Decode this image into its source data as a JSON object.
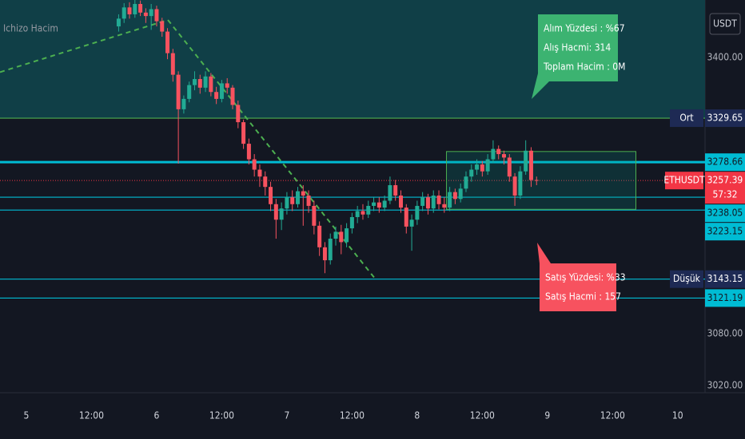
{
  "chart_data": {
    "type": "candlestick",
    "symbol": "ETHUSDT",
    "currency": "USDT",
    "indicator": "Ichizo Hacim",
    "colors": {
      "up": "#22ab94",
      "down": "#f7525f",
      "zone": "#103f47",
      "trend": "#4caf50",
      "box": "#4caf50"
    },
    "xlim": [
      -4.86,
      125.04
    ],
    "xticks": [
      {
        "value": 0,
        "label": "5"
      },
      {
        "value": 12,
        "label": "12:00"
      },
      {
        "value": 24,
        "label": "6"
      },
      {
        "value": 36,
        "label": "12:00"
      },
      {
        "value": 48,
        "label": "7"
      },
      {
        "value": 60,
        "label": "12:00"
      },
      {
        "value": 72,
        "label": "8"
      },
      {
        "value": 84,
        "label": "12:00"
      },
      {
        "value": 96,
        "label": "9"
      },
      {
        "value": 108,
        "label": "12:00"
      },
      {
        "value": 120,
        "label": "10"
      }
    ],
    "ylim": [
      3011.5,
      3466.6
    ],
    "yticks": [
      {
        "value": 3400,
        "label": "3400.00"
      },
      {
        "value": 3080,
        "label": "3080.00"
      },
      {
        "value": 3020,
        "label": "3020.00"
      }
    ],
    "x": [
      17,
      18,
      19,
      20,
      21,
      22,
      23,
      24,
      25,
      26,
      27,
      28,
      29,
      30,
      31,
      32,
      33,
      34,
      35,
      36,
      37,
      38,
      39,
      40,
      41,
      42,
      43,
      44,
      45,
      46,
      47,
      48,
      49,
      50,
      51,
      52,
      53,
      54,
      55,
      56,
      57,
      58,
      59,
      60,
      61,
      62,
      63,
      64,
      65,
      66,
      67,
      68,
      69,
      70,
      71,
      72,
      73,
      74,
      75,
      76,
      77,
      78,
      79,
      80,
      81,
      82,
      83,
      84,
      85,
      86,
      87,
      88,
      89,
      90,
      91,
      92,
      93,
      94
    ],
    "open": [
      3436,
      3445,
      3458,
      3450,
      3462,
      3452,
      3448,
      3456,
      3442,
      3430,
      3405,
      3380,
      3340,
      3352,
      3368,
      3375,
      3365,
      3378,
      3360,
      3352,
      3370,
      3365,
      3345,
      3325,
      3300,
      3282,
      3270,
      3262,
      3250,
      3230,
      3212,
      3225,
      3238,
      3230,
      3245,
      3240,
      3228,
      3205,
      3180,
      3165,
      3190,
      3198,
      3186,
      3202,
      3215,
      3222,
      3218,
      3228,
      3232,
      3226,
      3234,
      3252,
      3240,
      3226,
      3204,
      3212,
      3228,
      3238,
      3225,
      3240,
      3230,
      3226,
      3244,
      3236,
      3248,
      3262,
      3270,
      3276,
      3268,
      3282,
      3294,
      3288,
      3284,
      3262,
      3240,
      3268,
      3292,
      3258
    ],
    "high": [
      3450,
      3463,
      3464,
      3467,
      3466,
      3457,
      3462,
      3460,
      3446,
      3434,
      3410,
      3384,
      3356,
      3372,
      3384,
      3380,
      3384,
      3382,
      3366,
      3374,
      3376,
      3368,
      3350,
      3328,
      3306,
      3288,
      3276,
      3268,
      3256,
      3236,
      3232,
      3244,
      3246,
      3250,
      3252,
      3246,
      3234,
      3210,
      3186,
      3196,
      3204,
      3206,
      3208,
      3220,
      3228,
      3230,
      3234,
      3238,
      3238,
      3240,
      3262,
      3258,
      3246,
      3230,
      3218,
      3234,
      3244,
      3242,
      3246,
      3246,
      3238,
      3250,
      3248,
      3254,
      3268,
      3276,
      3282,
      3280,
      3288,
      3304,
      3298,
      3292,
      3288,
      3266,
      3274,
      3304,
      3296,
      3262
    ],
    "low": [
      3430,
      3440,
      3445,
      3446,
      3448,
      3440,
      3432,
      3436,
      3424,
      3398,
      3372,
      3277,
      3335,
      3348,
      3362,
      3358,
      3360,
      3355,
      3346,
      3348,
      3358,
      3340,
      3318,
      3294,
      3276,
      3262,
      3250,
      3240,
      3222,
      3190,
      3200,
      3218,
      3222,
      3226,
      3205,
      3220,
      3195,
      3170,
      3150,
      3160,
      3182,
      3172,
      3180,
      3196,
      3208,
      3212,
      3214,
      3222,
      3220,
      3222,
      3230,
      3234,
      3220,
      3196,
      3176,
      3206,
      3222,
      3218,
      3220,
      3224,
      3220,
      3222,
      3230,
      3232,
      3244,
      3256,
      3264,
      3262,
      3264,
      3278,
      3282,
      3276,
      3256,
      3228,
      3236,
      3264,
      3250,
      3252
    ],
    "close": [
      3445,
      3458,
      3450,
      3462,
      3452,
      3448,
      3456,
      3442,
      3430,
      3405,
      3380,
      3340,
      3352,
      3368,
      3375,
      3365,
      3378,
      3360,
      3352,
      3370,
      3365,
      3345,
      3325,
      3300,
      3282,
      3270,
      3262,
      3250,
      3230,
      3212,
      3225,
      3238,
      3230,
      3245,
      3240,
      3228,
      3205,
      3180,
      3165,
      3190,
      3198,
      3186,
      3202,
      3215,
      3222,
      3218,
      3228,
      3232,
      3226,
      3234,
      3252,
      3240,
      3226,
      3204,
      3212,
      3228,
      3238,
      3225,
      3240,
      3230,
      3226,
      3244,
      3236,
      3248,
      3262,
      3270,
      3276,
      3268,
      3282,
      3294,
      3288,
      3284,
      3262,
      3240,
      3268,
      3292,
      3258,
      3257.39
    ],
    "levels": [
      {
        "name": "Ort",
        "value": 3329.65,
        "color": "#4caf50"
      },
      {
        "value": 3278.66,
        "color": "#00bcd4"
      },
      {
        "value": 3238.05,
        "color": "#00bcd4"
      },
      {
        "value": 3223.15,
        "color": "#00bcd4"
      },
      {
        "name": "Düşük",
        "value": 3143.15,
        "color": "#00bcd4"
      },
      {
        "value": 3121.19,
        "color": "#00bcd4"
      }
    ],
    "last": {
      "value": 3257.39,
      "countdown": "57:32",
      "color": "#f23645"
    },
    "trendlines": [
      {
        "x": [
          -4.86,
          26.07
        ],
        "y": [
          3383,
          3443.5
        ]
      },
      {
        "x": [
          26.07,
          64.36
        ],
        "y": [
          3443.5,
          3142.8
        ]
      }
    ],
    "box": {
      "x": [
        77.4,
        112.3
      ],
      "y": [
        3291,
        3224
      ]
    },
    "buy_note": [
      "Alım Yüzdesi : %67",
      "Alış Hacmi: 314",
      "Toplam Hacim : 0M"
    ],
    "sell_note": [
      "Satış Yüzdesi: %33",
      "Satış Hacmi : 157"
    ]
  }
}
